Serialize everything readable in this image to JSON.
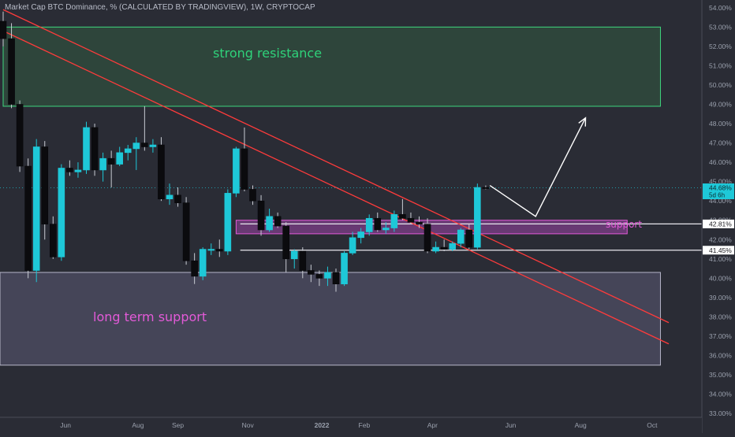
{
  "header": "Market Cap BTC Dominance, % (CALCULATED BY TRADINGVIEW), 1W, CRYPTOCAP",
  "colors": {
    "background": "#2a2c35",
    "up_candle": "#1ec8d8",
    "down_candle": "#0b0b0e",
    "trendline": "#ff3b3b",
    "resistance_zone": "#2f4a3c",
    "support_zone": "#7e3f88",
    "long_term_zone": "#4a4a5e",
    "axis_text": "#9aa0ad"
  },
  "chart_data": {
    "type": "candlestick",
    "title": "Market Cap BTC Dominance, % (CALCULATED BY TRADINGVIEW), 1W, CRYPTOCAP",
    "ylim": [
      32.8,
      54.4
    ],
    "y_ticks": [
      "54.00%",
      "53.00%",
      "52.00%",
      "51.00%",
      "50.00%",
      "49.00%",
      "48.00%",
      "47.00%",
      "46.00%",
      "45.00%",
      "44.00%",
      "43.00%",
      "42.00%",
      "41.00%",
      "40.00%",
      "39.00%",
      "38.00%",
      "37.00%",
      "36.00%",
      "35.00%",
      "34.00%",
      "33.00%"
    ],
    "x_ticks": [
      {
        "label": "Jun",
        "week": 7.5
      },
      {
        "label": "Aug",
        "week": 16.2
      },
      {
        "label": "Sep",
        "week": 21.0
      },
      {
        "label": "Nov",
        "week": 29.4
      },
      {
        "label": "2022",
        "week": 38.3
      },
      {
        "label": "Feb",
        "week": 43.4
      },
      {
        "label": "Apr",
        "week": 51.6
      },
      {
        "label": "Jun",
        "week": 61.0
      },
      {
        "label": "Aug",
        "week": 69.4
      },
      {
        "label": "Oct",
        "week": 78.0
      }
    ],
    "price_labels": [
      {
        "text": "44.68%",
        "sub": "5d 6h",
        "value": 44.68,
        "style": "current"
      },
      {
        "text": "42.81%",
        "value": 42.81,
        "style": "level"
      },
      {
        "text": "41.45%",
        "value": 41.45,
        "style": "level"
      }
    ],
    "candles": [
      {
        "o": 53.3,
        "h": 53.8,
        "l": 52.0,
        "c": 52.4
      },
      {
        "o": 52.4,
        "h": 53.2,
        "l": 48.8,
        "c": 49.0
      },
      {
        "o": 49.0,
        "h": 49.2,
        "l": 45.5,
        "c": 45.8
      },
      {
        "o": 45.8,
        "h": 46.2,
        "l": 40.0,
        "c": 40.4
      },
      {
        "o": 40.4,
        "h": 47.2,
        "l": 39.8,
        "c": 46.8
      },
      {
        "o": 46.8,
        "h": 47.1,
        "l": 42.0,
        "c": 42.8
      },
      {
        "o": 42.8,
        "h": 43.2,
        "l": 41.0,
        "c": 41.1
      },
      {
        "o": 41.1,
        "h": 45.9,
        "l": 40.9,
        "c": 45.7
      },
      {
        "o": 45.7,
        "h": 46.1,
        "l": 45.3,
        "c": 45.5
      },
      {
        "o": 45.5,
        "h": 46.0,
        "l": 45.2,
        "c": 45.6
      },
      {
        "o": 45.6,
        "h": 48.1,
        "l": 45.4,
        "c": 47.8
      },
      {
        "o": 47.8,
        "h": 48.0,
        "l": 45.3,
        "c": 45.6
      },
      {
        "o": 45.6,
        "h": 46.5,
        "l": 45.0,
        "c": 46.2
      },
      {
        "o": 46.2,
        "h": 46.6,
        "l": 44.7,
        "c": 45.9
      },
      {
        "o": 45.9,
        "h": 46.8,
        "l": 45.8,
        "c": 46.5
      },
      {
        "o": 46.5,
        "h": 46.9,
        "l": 46.1,
        "c": 46.7
      },
      {
        "o": 46.7,
        "h": 47.3,
        "l": 45.6,
        "c": 47.0
      },
      {
        "o": 47.0,
        "h": 48.9,
        "l": 46.6,
        "c": 46.8
      },
      {
        "o": 46.8,
        "h": 47.2,
        "l": 46.5,
        "c": 46.9
      },
      {
        "o": 46.9,
        "h": 47.3,
        "l": 44.0,
        "c": 44.1
      },
      {
        "o": 44.1,
        "h": 44.9,
        "l": 43.8,
        "c": 44.3
      },
      {
        "o": 44.3,
        "h": 44.7,
        "l": 43.7,
        "c": 43.9
      },
      {
        "o": 43.9,
        "h": 44.2,
        "l": 40.7,
        "c": 40.9
      },
      {
        "o": 40.9,
        "h": 41.3,
        "l": 39.7,
        "c": 40.1
      },
      {
        "o": 40.1,
        "h": 41.6,
        "l": 39.9,
        "c": 41.5
      },
      {
        "o": 41.5,
        "h": 41.8,
        "l": 41.2,
        "c": 41.5
      },
      {
        "o": 41.5,
        "h": 42.0,
        "l": 41.1,
        "c": 41.4
      },
      {
        "o": 41.4,
        "h": 44.6,
        "l": 41.2,
        "c": 44.4
      },
      {
        "o": 44.4,
        "h": 46.8,
        "l": 44.2,
        "c": 46.7
      },
      {
        "o": 46.7,
        "h": 47.8,
        "l": 44.5,
        "c": 44.6
      },
      {
        "o": 44.6,
        "h": 44.8,
        "l": 43.8,
        "c": 44.0
      },
      {
        "o": 44.0,
        "h": 44.3,
        "l": 42.2,
        "c": 42.5
      },
      {
        "o": 42.5,
        "h": 43.6,
        "l": 42.4,
        "c": 43.2
      },
      {
        "o": 43.2,
        "h": 43.4,
        "l": 42.6,
        "c": 42.7
      },
      {
        "o": 42.7,
        "h": 42.9,
        "l": 40.3,
        "c": 41.0
      },
      {
        "o": 41.0,
        "h": 41.5,
        "l": 40.5,
        "c": 41.4
      },
      {
        "o": 41.4,
        "h": 41.6,
        "l": 40.0,
        "c": 40.4
      },
      {
        "o": 40.4,
        "h": 40.7,
        "l": 39.8,
        "c": 40.2
      },
      {
        "o": 40.2,
        "h": 40.4,
        "l": 39.6,
        "c": 40.0
      },
      {
        "o": 40.0,
        "h": 40.6,
        "l": 39.6,
        "c": 40.3
      },
      {
        "o": 40.3,
        "h": 40.5,
        "l": 39.3,
        "c": 39.7
      },
      {
        "o": 39.7,
        "h": 41.4,
        "l": 39.6,
        "c": 41.3
      },
      {
        "o": 41.3,
        "h": 42.4,
        "l": 41.2,
        "c": 42.1
      },
      {
        "o": 42.1,
        "h": 42.6,
        "l": 41.8,
        "c": 42.4
      },
      {
        "o": 42.4,
        "h": 43.3,
        "l": 42.2,
        "c": 43.1
      },
      {
        "o": 43.1,
        "h": 43.4,
        "l": 42.4,
        "c": 42.5
      },
      {
        "o": 42.5,
        "h": 42.9,
        "l": 42.3,
        "c": 42.6
      },
      {
        "o": 42.6,
        "h": 43.5,
        "l": 42.4,
        "c": 43.3
      },
      {
        "o": 43.3,
        "h": 44.1,
        "l": 43.0,
        "c": 43.1
      },
      {
        "o": 43.1,
        "h": 43.4,
        "l": 42.8,
        "c": 42.9
      },
      {
        "o": 42.9,
        "h": 43.2,
        "l": 42.6,
        "c": 42.8
      },
      {
        "o": 42.8,
        "h": 43.1,
        "l": 41.3,
        "c": 41.4
      },
      {
        "o": 41.4,
        "h": 41.9,
        "l": 41.3,
        "c": 41.6
      },
      {
        "o": 41.6,
        "h": 42.0,
        "l": 41.4,
        "c": 41.5
      },
      {
        "o": 41.5,
        "h": 41.9,
        "l": 41.4,
        "c": 41.8
      },
      {
        "o": 41.8,
        "h": 42.6,
        "l": 41.6,
        "c": 42.5
      },
      {
        "o": 42.5,
        "h": 42.8,
        "l": 41.5,
        "c": 41.6
      },
      {
        "o": 41.6,
        "h": 44.9,
        "l": 41.5,
        "c": 44.7
      },
      {
        "o": 44.7,
        "h": 44.8,
        "l": 44.6,
        "c": 44.68
      }
    ],
    "zones": [
      {
        "label": "strong resistance",
        "from": 48.9,
        "to": 53.0,
        "start_week": 0,
        "end_week": 79
      },
      {
        "label": "long term support",
        "from": 35.5,
        "to": 40.3,
        "start_week": -1,
        "end_week": 79
      },
      {
        "label": "support",
        "from": 42.3,
        "to": 43.0,
        "start_week": 28,
        "end_week": 75
      }
    ],
    "hlines": [
      42.81,
      41.45
    ],
    "trendlines": [
      {
        "p1": [
          0,
          53.9
        ],
        "p2": [
          80,
          37.7
        ]
      },
      {
        "p1": [
          0,
          52.8
        ],
        "p2": [
          80,
          36.6
        ]
      }
    ],
    "projection": [
      [
        58.5,
        44.8
      ],
      [
        64.0,
        43.2
      ],
      [
        70.0,
        48.3
      ]
    ]
  },
  "annotations": {
    "strong_resistance": "strong resistance",
    "long_term_support": "long term support",
    "support": "support"
  }
}
